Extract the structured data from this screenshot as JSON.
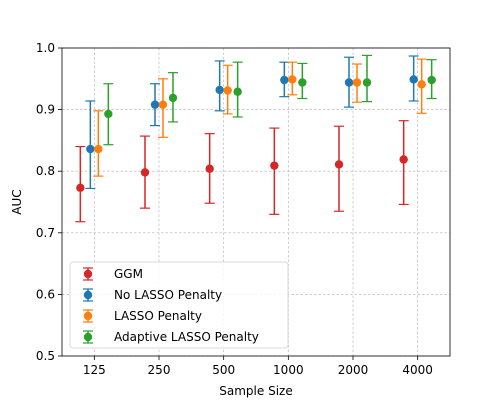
{
  "chart_data": {
    "type": "scatter",
    "title": "",
    "xlabel": "Sample Size",
    "ylabel": "AUC",
    "categories": [
      "125",
      "250",
      "500",
      "1000",
      "2000",
      "4000"
    ],
    "ylim": [
      0.5,
      1.0
    ],
    "yticks": [
      "0.5",
      "0.6",
      "0.7",
      "0.8",
      "0.9",
      "1.0"
    ],
    "grid": true,
    "legend_position": "lower-left",
    "series": [
      {
        "name": "GGM",
        "color": "#d62728",
        "values": [
          0.773,
          0.798,
          0.804,
          0.809,
          0.811,
          0.819
        ],
        "lower": [
          0.718,
          0.74,
          0.748,
          0.73,
          0.735,
          0.746
        ],
        "upper": [
          0.84,
          0.857,
          0.861,
          0.87,
          0.873,
          0.882
        ]
      },
      {
        "name": "No LASSO Penalty",
        "color": "#1f77b4",
        "values": [
          0.836,
          0.908,
          0.932,
          0.948,
          0.944,
          0.949
        ],
        "lower": [
          0.772,
          0.874,
          0.898,
          0.921,
          0.904,
          0.914
        ],
        "upper": [
          0.914,
          0.942,
          0.979,
          0.977,
          0.985,
          0.987
        ]
      },
      {
        "name": "LASSO Penalty",
        "color": "#ff7f0e",
        "values": [
          0.836,
          0.908,
          0.931,
          0.949,
          0.944,
          0.941
        ],
        "lower": [
          0.792,
          0.855,
          0.893,
          0.924,
          0.912,
          0.894
        ],
        "upper": [
          0.898,
          0.95,
          0.972,
          0.977,
          0.974,
          0.982
        ]
      },
      {
        "name": "Adaptive LASSO Penalty",
        "color": "#2ca02c",
        "values": [
          0.893,
          0.919,
          0.929,
          0.944,
          0.944,
          0.948
        ],
        "lower": [
          0.843,
          0.88,
          0.888,
          0.918,
          0.913,
          0.918
        ],
        "upper": [
          0.942,
          0.96,
          0.977,
          0.975,
          0.988,
          0.981
        ]
      }
    ]
  }
}
